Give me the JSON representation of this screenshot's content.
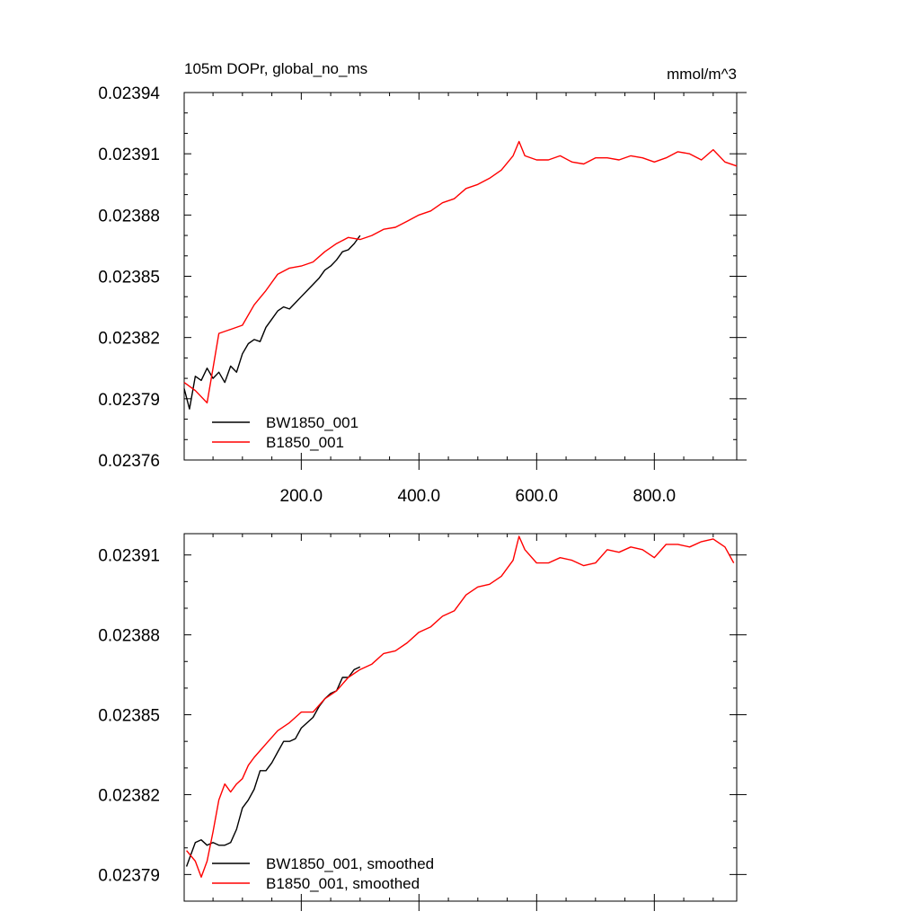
{
  "chart_data": [
    {
      "type": "line",
      "title_left": "105m DOPr, global_no_ms",
      "title_right": "mmol/m^3",
      "xlim": [
        1,
        940
      ],
      "ylim": [
        0.02376,
        0.02394
      ],
      "x_ticks": [
        200,
        400,
        600,
        800
      ],
      "x_tick_labels": [
        "200.0",
        "400.0",
        "600.0",
        "800.0"
      ],
      "y_ticks": [
        0.02376,
        0.02379,
        0.02382,
        0.02385,
        0.02388,
        0.02391,
        0.02394
      ],
      "y_tick_labels": [
        "0.02376",
        "0.02379",
        "0.02382",
        "0.02385",
        "0.02388",
        "0.02391",
        "0.02394"
      ],
      "legend_position": "bottom-left",
      "series": [
        {
          "name": "BW1850_001",
          "color": "#000000",
          "x": [
            1,
            10,
            20,
            30,
            40,
            50,
            60,
            70,
            80,
            90,
            100,
            110,
            120,
            130,
            140,
            150,
            160,
            170,
            180,
            190,
            200,
            210,
            220,
            230,
            240,
            250,
            260,
            270,
            280,
            290,
            300
          ],
          "y": [
            0.023795,
            0.023785,
            0.023801,
            0.023799,
            0.023805,
            0.0238,
            0.023803,
            0.023798,
            0.023806,
            0.023803,
            0.023812,
            0.023817,
            0.023819,
            0.023818,
            0.023825,
            0.023829,
            0.023833,
            0.023835,
            0.023834,
            0.023837,
            0.02384,
            0.023843,
            0.023846,
            0.023849,
            0.023853,
            0.023855,
            0.023858,
            0.023862,
            0.023863,
            0.023866,
            0.02387
          ]
        },
        {
          "name": "B1850_001",
          "color": "#ff0000",
          "x": [
            1,
            20,
            40,
            50,
            60,
            80,
            100,
            120,
            140,
            160,
            180,
            200,
            220,
            240,
            260,
            280,
            300,
            320,
            340,
            360,
            380,
            400,
            420,
            440,
            460,
            480,
            500,
            520,
            540,
            560,
            570,
            580,
            600,
            620,
            640,
            660,
            680,
            700,
            720,
            740,
            760,
            780,
            800,
            820,
            840,
            860,
            880,
            900,
            920,
            940
          ],
          "y": [
            0.023798,
            0.023794,
            0.023788,
            0.023805,
            0.023822,
            0.023824,
            0.023826,
            0.023836,
            0.023843,
            0.023851,
            0.023854,
            0.023855,
            0.023857,
            0.023862,
            0.023866,
            0.023869,
            0.023868,
            0.02387,
            0.023873,
            0.023874,
            0.023877,
            0.02388,
            0.023882,
            0.023886,
            0.023888,
            0.023893,
            0.023895,
            0.023898,
            0.023902,
            0.023909,
            0.023916,
            0.023909,
            0.023907,
            0.023907,
            0.023909,
            0.023906,
            0.023905,
            0.023908,
            0.023908,
            0.023907,
            0.023909,
            0.023908,
            0.023906,
            0.023908,
            0.023911,
            0.02391,
            0.023907,
            0.023912,
            0.023906,
            0.023904
          ]
        }
      ]
    },
    {
      "type": "line",
      "xlim": [
        1,
        940
      ],
      "ylim": [
        0.02378,
        0.023918
      ],
      "x_ticks": [
        200,
        400,
        600,
        800
      ],
      "y_ticks": [
        0.02379,
        0.02382,
        0.02385,
        0.02388,
        0.02391
      ],
      "y_tick_labels": [
        "0.02379",
        "0.02382",
        "0.02385",
        "0.02388",
        "0.02391"
      ],
      "legend_position": "bottom-left",
      "series": [
        {
          "name": "BW1850_001, smoothed",
          "color": "#000000",
          "x": [
            5,
            20,
            30,
            40,
            50,
            60,
            70,
            80,
            90,
            100,
            110,
            120,
            130,
            140,
            150,
            160,
            170,
            180,
            190,
            200,
            210,
            220,
            230,
            240,
            250,
            260,
            270,
            280,
            290,
            300
          ],
          "y": [
            0.023793,
            0.023802,
            0.023803,
            0.023801,
            0.023802,
            0.023801,
            0.023801,
            0.023802,
            0.023807,
            0.023815,
            0.023818,
            0.023822,
            0.023829,
            0.023829,
            0.023832,
            0.023836,
            0.02384,
            0.02384,
            0.023841,
            0.023845,
            0.023847,
            0.023849,
            0.023853,
            0.023856,
            0.023858,
            0.023859,
            0.023864,
            0.023864,
            0.023867,
            0.023868
          ]
        },
        {
          "name": "B1850_001, smoothed",
          "color": "#ff0000",
          "x": [
            5,
            20,
            30,
            40,
            50,
            60,
            70,
            80,
            90,
            100,
            110,
            120,
            140,
            160,
            180,
            200,
            220,
            240,
            260,
            280,
            300,
            320,
            340,
            360,
            380,
            400,
            420,
            440,
            460,
            480,
            500,
            520,
            540,
            560,
            570,
            580,
            600,
            620,
            640,
            660,
            680,
            700,
            720,
            740,
            760,
            780,
            800,
            820,
            840,
            860,
            880,
            900,
            920,
            935
          ],
          "y": [
            0.023799,
            0.023795,
            0.023789,
            0.023795,
            0.023806,
            0.023818,
            0.023824,
            0.023821,
            0.023824,
            0.023826,
            0.023831,
            0.023834,
            0.023839,
            0.023844,
            0.023847,
            0.023851,
            0.023851,
            0.023856,
            0.023859,
            0.023864,
            0.023867,
            0.023869,
            0.023873,
            0.023874,
            0.023877,
            0.023881,
            0.023883,
            0.023887,
            0.023889,
            0.023895,
            0.023898,
            0.023899,
            0.023902,
            0.023908,
            0.023917,
            0.023912,
            0.023907,
            0.023907,
            0.023909,
            0.023908,
            0.023906,
            0.023907,
            0.023912,
            0.023911,
            0.023913,
            0.023912,
            0.023909,
            0.023914,
            0.023914,
            0.023913,
            0.023915,
            0.023916,
            0.023913,
            0.023907
          ]
        }
      ]
    }
  ]
}
